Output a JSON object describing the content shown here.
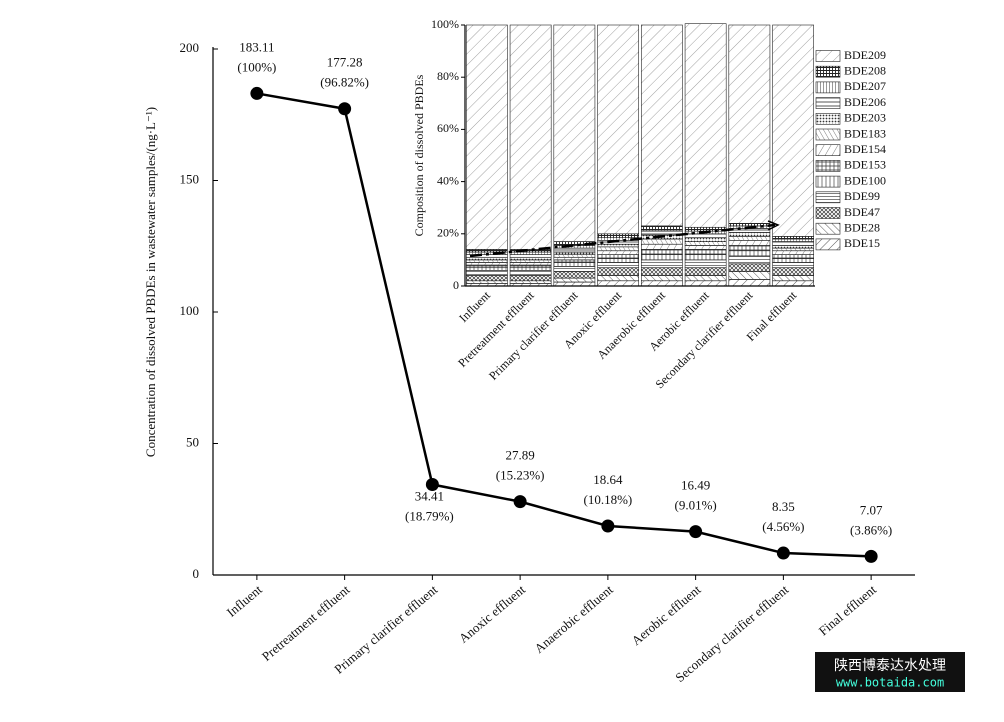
{
  "chart_data": [
    {
      "type": "line",
      "y_label": "Concentration of dissolved PBDEs in wastewater samples/(ng·L⁻¹)",
      "categories": [
        "Influent",
        "Pretreatment effluent",
        "Primary clarifier effluent",
        "Anoxic effluent",
        "Anaerobic effluent",
        "Aerobic effluent",
        "Secondary clarifier effluent",
        "Final effluent"
      ],
      "values": [
        183.11,
        177.28,
        34.41,
        27.89,
        18.64,
        16.49,
        8.35,
        7.07
      ],
      "share_labels": [
        "(100%)",
        "(96.82%)",
        "(18.79%)",
        "(15.23%)",
        "(10.18%)",
        "(9.01%)",
        "(4.56%)",
        "(3.86%)"
      ],
      "color": "#000000",
      "ylim": [
        0,
        200
      ],
      "yticks": [
        0,
        50,
        100,
        150,
        200
      ]
    },
    {
      "type": "stacked-bar",
      "y_label": "Composition of dissolved PBDEs",
      "categories": [
        "Influent",
        "Pretreatment effluent",
        "Primary clarifier effluent",
        "Anoxic effluent",
        "Anaerobic effluent",
        "Aerobic effluent",
        "Secondary clarifier effluent",
        "Final effluent"
      ],
      "series": [
        {
          "name": "BDE15",
          "values": [
            1,
            1,
            1.5,
            2,
            2,
            2,
            2.5,
            2
          ]
        },
        {
          "name": "BDE28",
          "values": [
            1,
            1,
            1.5,
            2,
            2,
            2,
            3,
            2
          ]
        },
        {
          "name": "BDE47",
          "values": [
            2,
            2,
            2.5,
            3,
            3,
            3,
            3,
            3
          ]
        },
        {
          "name": "BDE99",
          "values": [
            2,
            2,
            2,
            2,
            3,
            3,
            3,
            2
          ]
        },
        {
          "name": "BDE100",
          "values": [
            1,
            1,
            1.5,
            1.5,
            2,
            2,
            2,
            1.5
          ]
        },
        {
          "name": "BDE153",
          "values": [
            1,
            1,
            1,
            1.5,
            2,
            2,
            2,
            1.5
          ]
        },
        {
          "name": "BDE154",
          "values": [
            1,
            1,
            1,
            1.5,
            2,
            1.5,
            2,
            1.5
          ]
        },
        {
          "name": "BDE183",
          "values": [
            1,
            1,
            1,
            1.5,
            2,
            1.5,
            1.5,
            1
          ]
        },
        {
          "name": "BDE203",
          "values": [
            1,
            1,
            1,
            1,
            1.5,
            1.5,
            1.5,
            1
          ]
        },
        {
          "name": "BDE206",
          "values": [
            1,
            1,
            1.5,
            1.5,
            1.5,
            1.5,
            1.5,
            1.5
          ]
        },
        {
          "name": "BDE207",
          "values": [
            1,
            1,
            1,
            1,
            0.5,
            1,
            1,
            1
          ]
        },
        {
          "name": "BDE208",
          "values": [
            1,
            1,
            1.5,
            1.5,
            1.5,
            1.5,
            1,
            1
          ]
        },
        {
          "name": "BDE209",
          "values": [
            86,
            86,
            83,
            80,
            77,
            78,
            76,
            81
          ]
        }
      ],
      "ylim": [
        0,
        100
      ],
      "yticks": [
        0,
        {
          "value": 20,
          "label": "20%"
        },
        {
          "value": 40,
          "label": "40%"
        },
        {
          "value": 60,
          "label": "60%"
        },
        {
          "value": 80,
          "label": "80%"
        },
        {
          "value": 100,
          "label": "100%"
        }
      ]
    }
  ],
  "watermark": {
    "title": "陕西博泰达水处理",
    "url": "www.botaida.com"
  }
}
